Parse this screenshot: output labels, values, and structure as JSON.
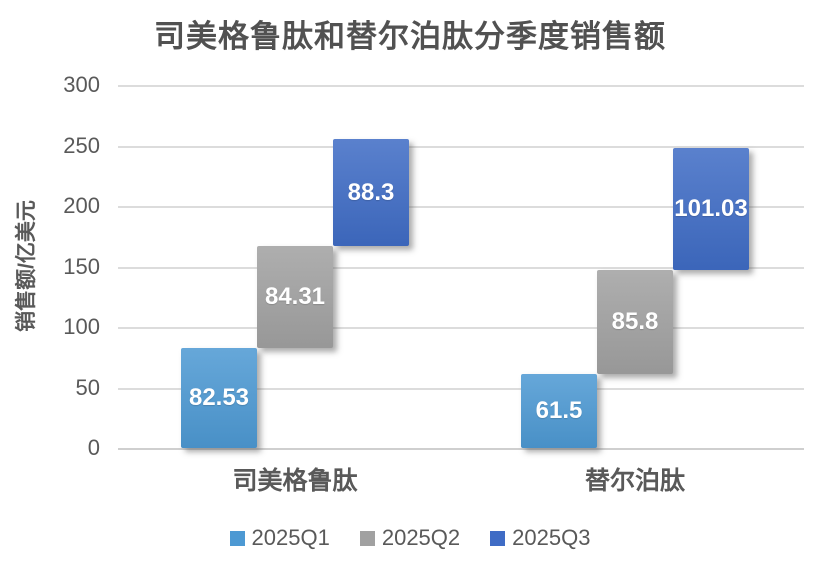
{
  "title": "司美格鲁肽和替尔泊肽分季度销售额",
  "chart_data": {
    "type": "bar",
    "subtype": "cumulative-step-columns",
    "title": "司美格鲁肽和替尔泊肽分季度销售额",
    "categories": [
      "司美格鲁肽",
      "替尔泊肽"
    ],
    "series": [
      {
        "name": "2025Q1",
        "color": "#4d99d3",
        "values": [
          82.53,
          61.5
        ],
        "labels": [
          "82.53",
          "61.5"
        ]
      },
      {
        "name": "2025Q2",
        "color": "#a1a1a1",
        "values": [
          84.31,
          85.8
        ],
        "labels": [
          "84.31",
          "85.8"
        ]
      },
      {
        "name": "2025Q3",
        "color": "#3f6cc5",
        "values": [
          88.3,
          101.03
        ],
        "labels": [
          "88.3",
          "101.03"
        ]
      }
    ],
    "xlabel": "",
    "ylabel": "销售额/亿美元",
    "ylim": [
      0,
      300
    ],
    "yticks": [
      0,
      50,
      100,
      150,
      200,
      250,
      300
    ],
    "grid": true,
    "legend_position": "bottom",
    "note": "each quarter bar is stacked cumulatively per category and offset horizontally like stairs"
  }
}
